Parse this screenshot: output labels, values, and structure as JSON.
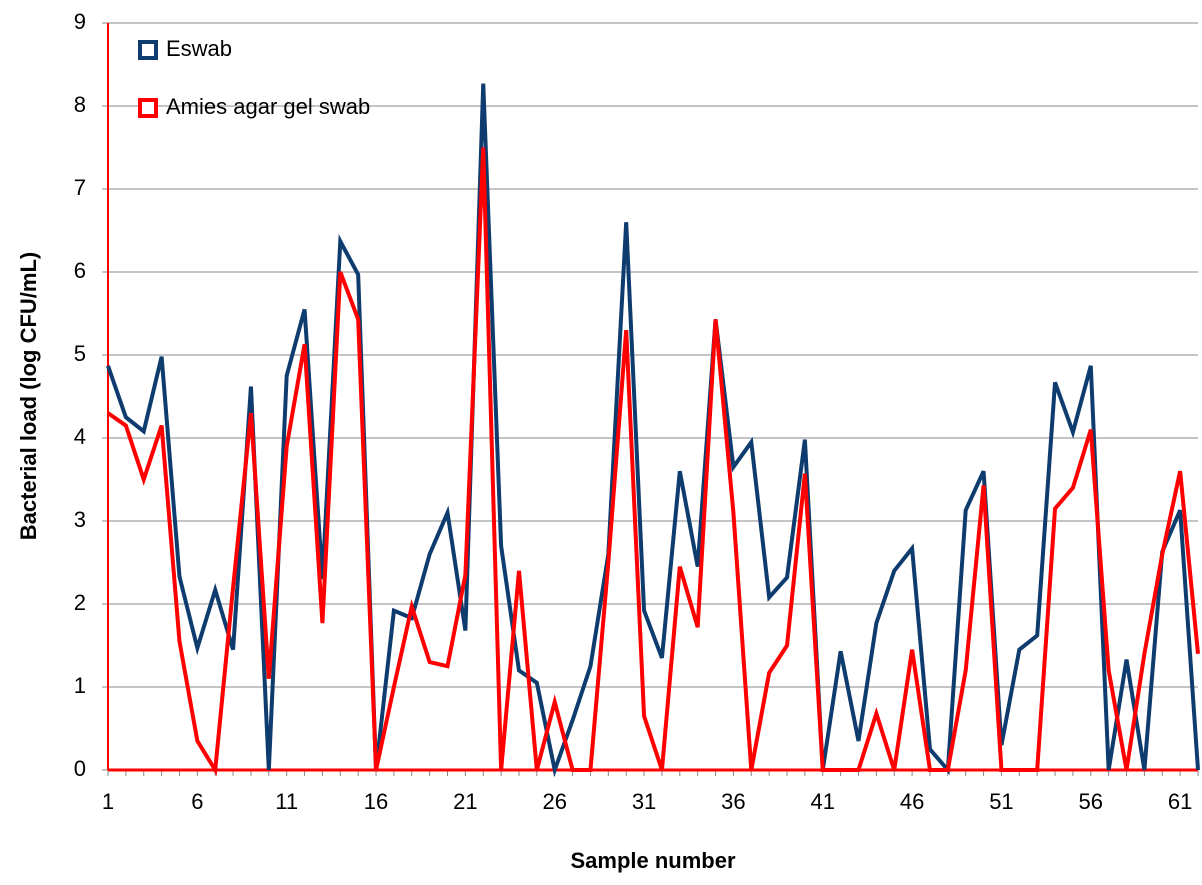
{
  "chart_data": {
    "type": "line",
    "x_label": "Sample number",
    "y_label": "Bacterial load (log CFU/mL)",
    "x": [
      1,
      2,
      3,
      4,
      5,
      6,
      7,
      8,
      9,
      10,
      11,
      12,
      13,
      14,
      15,
      16,
      17,
      18,
      19,
      20,
      21,
      22,
      23,
      24,
      25,
      26,
      27,
      28,
      29,
      30,
      31,
      32,
      33,
      34,
      35,
      36,
      37,
      38,
      39,
      40,
      41,
      42,
      43,
      44,
      45,
      46,
      47,
      48,
      49,
      50,
      51,
      52,
      53,
      54,
      55,
      56,
      57,
      58,
      59,
      60,
      61,
      62
    ],
    "xlim": [
      1,
      62
    ],
    "xticks": [
      1,
      6,
      11,
      16,
      21,
      26,
      31,
      36,
      41,
      46,
      51,
      56,
      61
    ],
    "ylim": [
      0,
      9
    ],
    "yticks": [
      0,
      1,
      2,
      3,
      4,
      5,
      6,
      7,
      8,
      9
    ],
    "grid": true,
    "legend": "top-left",
    "series": [
      {
        "name": "Eswab",
        "color": "#0f3c6e",
        "values": [
          4.87,
          4.25,
          4.08,
          4.98,
          2.33,
          1.47,
          2.17,
          1.45,
          4.62,
          0,
          4.75,
          5.55,
          2.3,
          6.37,
          5.97,
          0,
          1.92,
          1.83,
          2.6,
          3.1,
          1.68,
          8.27,
          2.7,
          1.2,
          1.05,
          0,
          0.6,
          1.25,
          2.6,
          6.6,
          1.92,
          1.35,
          3.6,
          2.45,
          5.43,
          3.65,
          3.95,
          2.08,
          2.32,
          3.98,
          0,
          1.43,
          0.35,
          1.77,
          2.4,
          2.67,
          0.25,
          0,
          3.13,
          3.6,
          0.3,
          1.45,
          1.62,
          4.67,
          4.07,
          4.87,
          0,
          1.33,
          0,
          2.63,
          3.13,
          0
        ]
      },
      {
        "name": "Amies agar gel swab",
        "color": "#ff0000",
        "values": [
          4.3,
          4.15,
          3.5,
          4.15,
          1.55,
          0.35,
          0,
          2.2,
          4.3,
          1.1,
          3.9,
          5.13,
          1.77,
          6.0,
          5.43,
          0,
          1.0,
          1.97,
          1.3,
          1.25,
          2.35,
          7.5,
          0,
          2.4,
          0,
          0.82,
          0,
          0,
          2.5,
          5.3,
          0.65,
          0,
          2.45,
          1.72,
          5.43,
          3.1,
          0,
          1.17,
          1.5,
          3.57,
          0,
          0,
          0,
          0.68,
          0,
          1.45,
          0,
          0,
          1.2,
          3.43,
          0,
          0,
          0,
          3.15,
          3.4,
          4.1,
          1.2,
          0,
          1.4,
          2.6,
          3.6,
          1.4
        ]
      }
    ]
  }
}
